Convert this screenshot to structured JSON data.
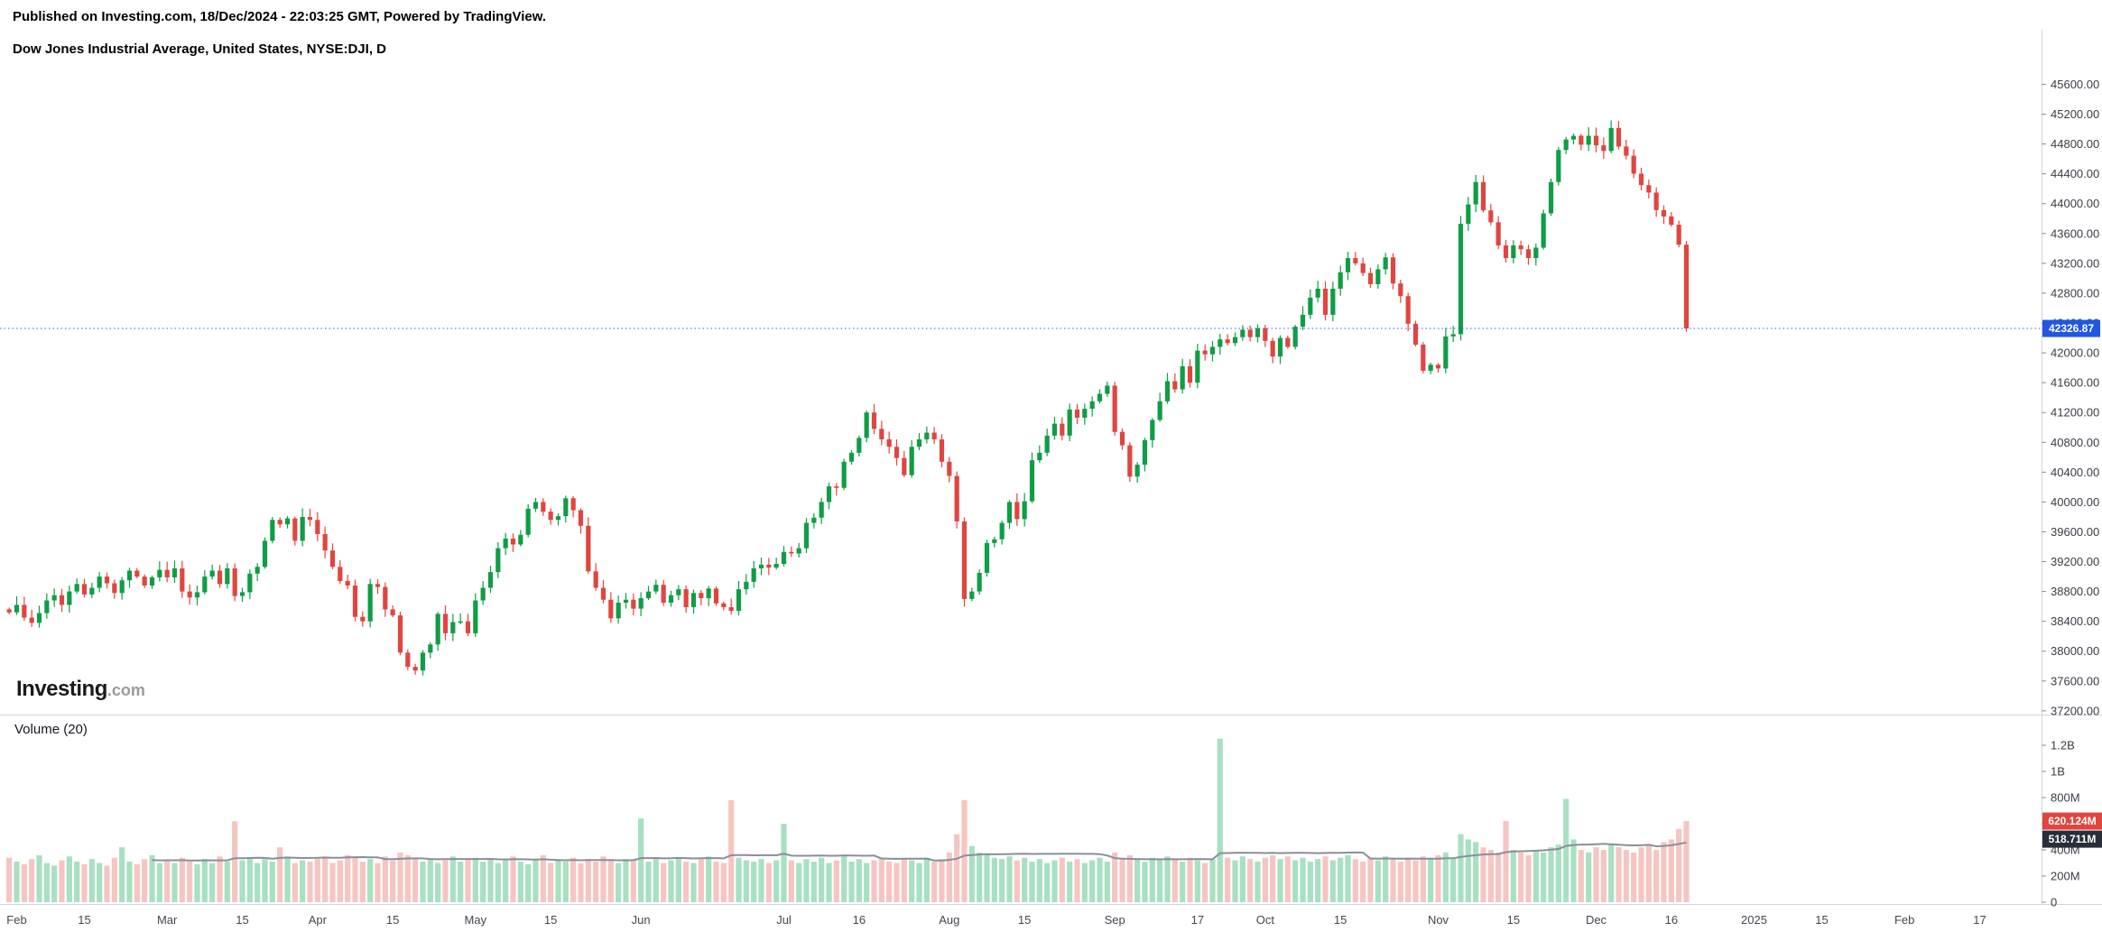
{
  "header": {
    "published_line": "Published on Investing.com, 18/Dec/2024 - 22:03:25 GMT, Powered by TradingView.",
    "instrument_line": "Dow Jones Industrial Average, United States, NYSE:DJI, D"
  },
  "watermark": {
    "brand": "Investing",
    "suffix": ".com"
  },
  "volume_pane": {
    "label": "Volume (20)"
  },
  "price_axis": {
    "labels": [
      "45600.00",
      "45200.00",
      "44800.00",
      "44400.00",
      "44000.00",
      "43600.00",
      "43200.00",
      "42800.00",
      "42400.00",
      "42000.00",
      "41600.00",
      "41200.00",
      "40800.00",
      "40400.00",
      "40000.00",
      "39600.00",
      "39200.00",
      "38800.00",
      "38400.00",
      "38000.00",
      "37600.00",
      "37200.00"
    ],
    "last_price_badge": "42326.87"
  },
  "volume_axis": {
    "labels": [
      {
        "label": "1.2B",
        "m": 1200
      },
      {
        "label": "1B",
        "m": 1000
      },
      {
        "label": "800M",
        "m": 800
      },
      {
        "label": "600M",
        "m": 600
      },
      {
        "label": "400M",
        "m": 400
      },
      {
        "label": "200M",
        "m": 200
      },
      {
        "label": "0",
        "m": 0
      }
    ],
    "last_volume_badge": "620.124M",
    "ma_badge": "518.711M"
  },
  "time_axis": {
    "ticks": [
      {
        "label": "Feb",
        "idx": 1
      },
      {
        "label": "15",
        "idx": 10
      },
      {
        "label": "Mar",
        "idx": 21
      },
      {
        "label": "15",
        "idx": 31
      },
      {
        "label": "Apr",
        "idx": 41
      },
      {
        "label": "15",
        "idx": 51
      },
      {
        "label": "May",
        "idx": 62
      },
      {
        "label": "15",
        "idx": 72
      },
      {
        "label": "Jun",
        "idx": 84
      },
      {
        "label": "Jul",
        "idx": 103
      },
      {
        "label": "16",
        "idx": 113
      },
      {
        "label": "Aug",
        "idx": 125
      },
      {
        "label": "15",
        "idx": 135
      },
      {
        "label": "Sep",
        "idx": 147
      },
      {
        "label": "17",
        "idx": 158
      },
      {
        "label": "Oct",
        "idx": 167
      },
      {
        "label": "15",
        "idx": 177
      },
      {
        "label": "Nov",
        "idx": 190
      },
      {
        "label": "15",
        "idx": 200
      },
      {
        "label": "Dec",
        "idx": 211
      },
      {
        "label": "16",
        "idx": 221
      },
      {
        "label": "2025",
        "idx": 232
      },
      {
        "label": "15",
        "idx": 241
      },
      {
        "label": "Feb",
        "idx": 252
      },
      {
        "label": "17",
        "idx": 262
      }
    ]
  },
  "colors": {
    "up": "#0f9d45",
    "down": "#e0453f",
    "vol_up": "#a8e0c2",
    "vol_down": "#f6c5c2",
    "ma_line": "#8b8e98",
    "axis_line": "#d1d4dc",
    "axis_text": "#3a3d46",
    "price_line_blue": "#2962ff",
    "badge_blue": "#2157e0",
    "badge_red": "#e0453f",
    "badge_dark": "#2a2e39"
  },
  "chart_data": {
    "type": "candlestick_with_volume",
    "title": "Dow Jones Industrial Average",
    "symbol": "NYSE:DJI",
    "interval": "D",
    "legend": "Volume (20)",
    "ma_period": 20,
    "last_close": 42326.87,
    "price_axis_range": [
      37150,
      46150
    ],
    "volume_axis_range_millions": [
      0,
      1380
    ],
    "total_slots": 270,
    "grid": false,
    "closes": [
      38520,
      38620,
      38450,
      38380,
      38510,
      38680,
      38750,
      38620,
      38800,
      38900,
      38760,
      38850,
      39000,
      38910,
      38780,
      38950,
      39080,
      39000,
      38880,
      38990,
      39090,
      38990,
      39110,
      38800,
      38720,
      38790,
      39000,
      39080,
      38900,
      39110,
      38740,
      38790,
      39040,
      39130,
      39480,
      39760,
      39700,
      39780,
      39480,
      39800,
      39760,
      39570,
      39350,
      39130,
      38940,
      38880,
      38460,
      38400,
      38900,
      38860,
      38560,
      38480,
      37980,
      37790,
      37740,
      37980,
      38090,
      38500,
      38240,
      38390,
      38400,
      38240,
      38680,
      38850,
      39060,
      39380,
      39510,
      39430,
      39560,
      39910,
      40000,
      39870,
      39760,
      39810,
      40050,
      39890,
      39680,
      39070,
      38850,
      38690,
      38440,
      38650,
      38690,
      38570,
      38710,
      38800,
      38890,
      38650,
      38750,
      38830,
      38590,
      38780,
      38710,
      38840,
      38640,
      38590,
      38540,
      38830,
      38930,
      39110,
      39160,
      39120,
      39170,
      39330,
      39310,
      39380,
      39720,
      39790,
      40000,
      40210,
      40190,
      40540,
      40660,
      40860,
      41200,
      40980,
      40840,
      40740,
      40590,
      40360,
      40740,
      40840,
      40930,
      40840,
      40540,
      40350,
      39740,
      38700,
      38800,
      39050,
      39450,
      39500,
      39720,
      40000,
      39770,
      40010,
      40560,
      40660,
      40890,
      41050,
      40890,
      41240,
      41130,
      41250,
      41350,
      41450,
      41560,
      40940,
      40760,
      40340,
      40500,
      40830,
      41100,
      41350,
      41620,
      41510,
      41820,
      41600,
      42030,
      41980,
      42080,
      42180,
      42130,
      42210,
      42310,
      42210,
      42330,
      42160,
      41950,
      42200,
      42080,
      42350,
      42510,
      42740,
      42860,
      42510,
      42860,
      43080,
      43270,
      43200,
      43070,
      42920,
      43120,
      43280,
      42930,
      42760,
      42390,
      42110,
      41760,
      41840,
      41790,
      42220,
      42250,
      43730,
      43990,
      44290,
      43910,
      43750,
      43440,
      43270,
      43440,
      43390,
      43270,
      43410,
      43870,
      44290,
      44720,
      44860,
      44910,
      44790,
      44910,
      44782,
      44706,
      45014,
      44766,
      44643,
      44402,
      44248,
      44149,
      43914,
      43828,
      43717,
      43450,
      42326.87
    ],
    "volumes_millions": [
      340,
      310,
      290,
      330,
      360,
      300,
      280,
      320,
      350,
      310,
      290,
      330,
      300,
      280,
      340,
      420,
      310,
      290,
      330,
      360,
      300,
      320,
      300,
      340,
      310,
      290,
      330,
      300,
      350,
      310,
      620,
      320,
      340,
      300,
      330,
      310,
      420,
      350,
      300,
      320,
      310,
      330,
      350,
      300,
      320,
      360,
      340,
      310,
      330,
      300,
      350,
      320,
      380,
      360,
      340,
      310,
      330,
      300,
      320,
      350,
      310,
      330,
      340,
      310,
      330,
      300,
      320,
      350,
      310,
      290,
      330,
      360,
      300,
      320,
      310,
      340,
      300,
      330,
      310,
      350,
      320,
      300,
      330,
      330,
      640,
      310,
      330,
      300,
      320,
      340,
      310,
      300,
      330,
      350,
      310,
      300,
      780,
      340,
      320,
      310,
      330,
      300,
      320,
      600,
      320,
      300,
      330,
      310,
      340,
      300,
      320,
      350,
      310,
      330,
      300,
      320,
      340,
      310,
      300,
      330,
      320,
      300,
      340,
      310,
      330,
      380,
      520,
      780,
      430,
      380,
      360,
      340,
      330,
      350,
      320,
      340,
      310,
      330,
      300,
      320,
      340,
      310,
      330,
      300,
      320,
      340,
      310,
      380,
      340,
      360,
      330,
      310,
      340,
      320,
      350,
      330,
      310,
      340,
      320,
      300,
      330,
      1250,
      340,
      320,
      350,
      330,
      310,
      340,
      360,
      330,
      350,
      320,
      340,
      310,
      330,
      350,
      320,
      340,
      360,
      330,
      310,
      340,
      320,
      350,
      330,
      310,
      340,
      320,
      350,
      330,
      360,
      380,
      340,
      520,
      480,
      460,
      420,
      400,
      380,
      620,
      400,
      380,
      360,
      400,
      380,
      420,
      440,
      790,
      480,
      400,
      380,
      420,
      400,
      440,
      420,
      400,
      380,
      420,
      440,
      400,
      460,
      480,
      560,
      620.124
    ]
  }
}
